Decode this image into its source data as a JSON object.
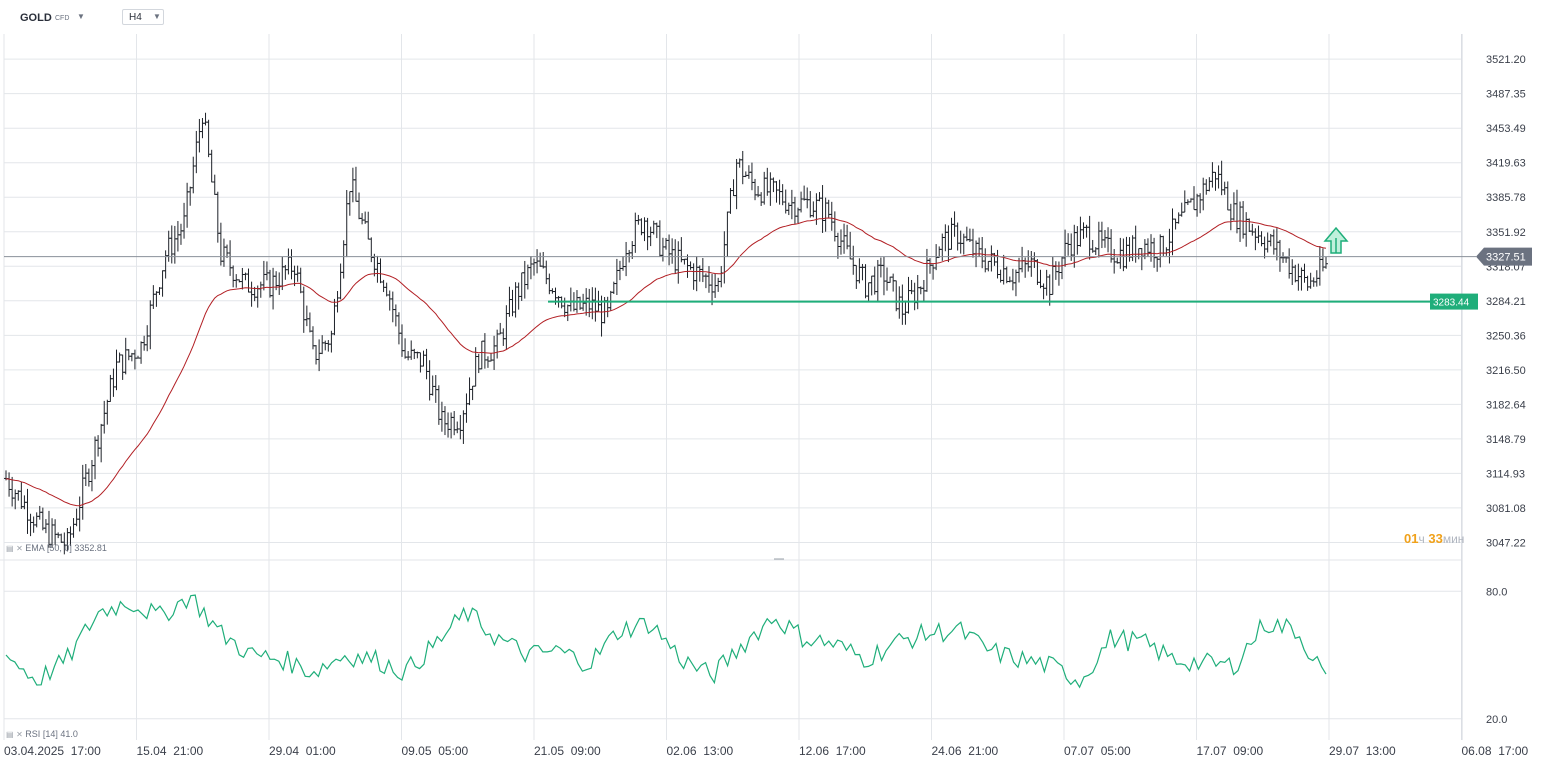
{
  "header": {
    "symbol": "GOLD",
    "symbol_type": "CFD",
    "timeframe": "H4"
  },
  "countdown": {
    "hours": "01",
    "hours_unit": "ч",
    "minutes": "33",
    "minutes_unit": "мин"
  },
  "indicators": {
    "ema_label": "EMA",
    "ema_params": "[50, 0]",
    "ema_value": "3352.81",
    "rsi_label": "RSI",
    "rsi_params": "[14]",
    "rsi_value": "41.0"
  },
  "colors": {
    "candle": "#1d2128",
    "ema": "#b21f24",
    "rsi": "#1fae7a",
    "support": "#1fae7a",
    "current_price_bg": "#6b7280",
    "grid": "#e3e6ea",
    "countdown_accent": "#f0a11a"
  },
  "chart_data": [
    {
      "type": "candlestick",
      "title": "GOLD CFD",
      "timeframe": "H4",
      "ylim": [
        3030,
        3540
      ],
      "y_ticks": [
        "3521.20",
        "3487.35",
        "3453.49",
        "3419.63",
        "3385.78",
        "3351.92",
        "3318.07",
        "3284.21",
        "3250.36",
        "3216.50",
        "3182.64",
        "3148.79",
        "3114.93",
        "3081.08",
        "3047.22"
      ],
      "x_ticks": [
        "03.04.2025  17:00",
        "15.04  21:00",
        "29.04  01:00",
        "09.05  05:00",
        "21.05  09:00",
        "02.06  13:00",
        "12.06  17:00",
        "24.06  21:00",
        "07.07  05:00",
        "17.07  09:00",
        "29.07  13:00",
        "06.08  17:00"
      ],
      "current_price": 3327.51,
      "support_line": {
        "value": 3283.44,
        "label": "3283.44"
      },
      "arrow": "up",
      "approx_close_path": [
        [
          0,
          3110
        ],
        [
          12,
          3060
        ],
        [
          20,
          3045
        ],
        [
          28,
          3130
        ],
        [
          36,
          3220
        ],
        [
          44,
          3240
        ],
        [
          52,
          3330
        ],
        [
          58,
          3360
        ],
        [
          64,
          3470
        ],
        [
          70,
          3330
        ],
        [
          78,
          3300
        ],
        [
          86,
          3300
        ],
        [
          94,
          3320
        ],
        [
          100,
          3230
        ],
        [
          106,
          3250
        ],
        [
          112,
          3400
        ],
        [
          118,
          3340
        ],
        [
          124,
          3300
        ],
        [
          130,
          3230
        ],
        [
          136,
          3225
        ],
        [
          142,
          3165
        ],
        [
          148,
          3170
        ],
        [
          154,
          3230
        ],
        [
          160,
          3240
        ],
        [
          166,
          3290
        ],
        [
          172,
          3320
        ],
        [
          178,
          3300
        ],
        [
          184,
          3275
        ],
        [
          190,
          3280
        ],
        [
          196,
          3270
        ],
        [
          202,
          3340
        ],
        [
          208,
          3365
        ],
        [
          214,
          3335
        ],
        [
          220,
          3320
        ],
        [
          226,
          3310
        ],
        [
          232,
          3300
        ],
        [
          238,
          3420
        ],
        [
          244,
          3395
        ],
        [
          250,
          3390
        ],
        [
          256,
          3380
        ],
        [
          262,
          3380
        ],
        [
          268,
          3370
        ],
        [
          274,
          3330
        ],
        [
          280,
          3300
        ],
        [
          286,
          3310
        ],
        [
          292,
          3275
        ],
        [
          298,
          3300
        ],
        [
          304,
          3340
        ],
        [
          310,
          3350
        ],
        [
          316,
          3330
        ],
        [
          322,
          3320
        ],
        [
          328,
          3310
        ],
        [
          334,
          3320
        ],
        [
          340,
          3300
        ],
        [
          346,
          3340
        ],
        [
          352,
          3350
        ],
        [
          358,
          3335
        ],
        [
          364,
          3330
        ],
        [
          370,
          3340
        ],
        [
          376,
          3335
        ],
        [
          382,
          3360
        ],
        [
          388,
          3385
        ],
        [
          394,
          3410
        ],
        [
          400,
          3370
        ],
        [
          406,
          3355
        ],
        [
          412,
          3340
        ],
        [
          418,
          3320
        ],
        [
          424,
          3300
        ],
        [
          430,
          3318
        ]
      ],
      "ema": {
        "name": "EMA [50, 0]",
        "last": 3352.81
      }
    },
    {
      "type": "line",
      "title": "RSI [14]",
      "ylim": [
        10,
        90
      ],
      "y_ticks": [
        "80.0",
        "20.0"
      ],
      "last": 41.0,
      "approx_values": [
        [
          0,
          50
        ],
        [
          10,
          38
        ],
        [
          20,
          48
        ],
        [
          30,
          70
        ],
        [
          40,
          75
        ],
        [
          50,
          68
        ],
        [
          60,
          78
        ],
        [
          70,
          60
        ],
        [
          80,
          50
        ],
        [
          90,
          48
        ],
        [
          100,
          42
        ],
        [
          110,
          50
        ],
        [
          120,
          48
        ],
        [
          130,
          42
        ],
        [
          140,
          55
        ],
        [
          150,
          70
        ],
        [
          160,
          58
        ],
        [
          170,
          50
        ],
        [
          180,
          52
        ],
        [
          190,
          46
        ],
        [
          200,
          62
        ],
        [
          210,
          65
        ],
        [
          220,
          48
        ],
        [
          230,
          40
        ],
        [
          240,
          55
        ],
        [
          250,
          68
        ],
        [
          260,
          58
        ],
        [
          270,
          55
        ],
        [
          280,
          48
        ],
        [
          290,
          56
        ],
        [
          300,
          60
        ],
        [
          310,
          62
        ],
        [
          320,
          52
        ],
        [
          330,
          48
        ],
        [
          340,
          45
        ],
        [
          350,
          38
        ],
        [
          360,
          58
        ],
        [
          370,
          56
        ],
        [
          380,
          48
        ],
        [
          390,
          46
        ],
        [
          400,
          45
        ],
        [
          410,
          65
        ],
        [
          420,
          62
        ],
        [
          430,
          40
        ]
      ]
    }
  ]
}
